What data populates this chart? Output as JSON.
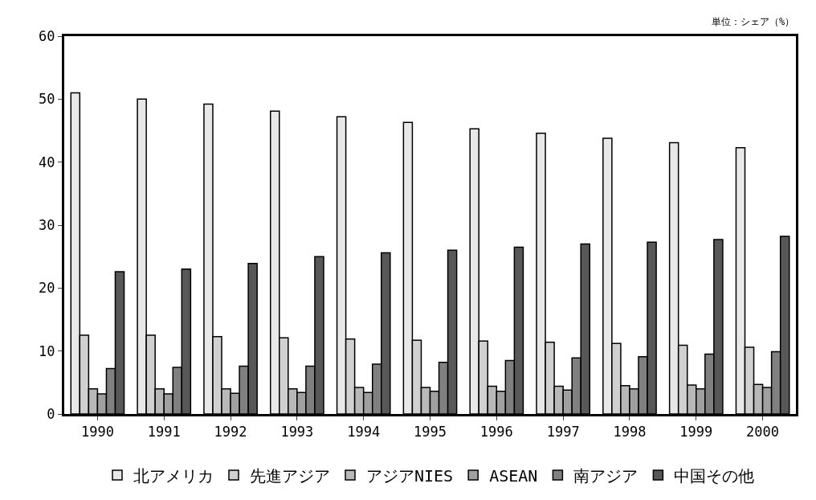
{
  "chart_data": {
    "type": "bar",
    "categories": [
      "1990",
      "1991",
      "1992",
      "1993",
      "1994",
      "1995",
      "1996",
      "1997",
      "1998",
      "1999",
      "2000"
    ],
    "series": [
      {
        "name": "北アメリカ",
        "color": "#e8e8e8",
        "values": [
          51,
          50,
          49.2,
          48.1,
          47.2,
          46.3,
          45.3,
          44.6,
          43.8,
          43.1,
          42.3
        ]
      },
      {
        "name": "先進アジア",
        "color": "#d0d0d0",
        "values": [
          12.5,
          12.5,
          12.3,
          12.1,
          11.9,
          11.7,
          11.6,
          11.4,
          11.2,
          10.9,
          10.6
        ]
      },
      {
        "name": "アジアNIES",
        "color": "#b8b8b8",
        "values": [
          4.0,
          4.0,
          4.0,
          4.0,
          4.2,
          4.2,
          4.4,
          4.4,
          4.5,
          4.6,
          4.7
        ]
      },
      {
        "name": "ASEAN",
        "color": "#a0a0a0",
        "values": [
          3.2,
          3.2,
          3.3,
          3.4,
          3.4,
          3.6,
          3.6,
          3.8,
          4.0,
          4.0,
          4.2
        ]
      },
      {
        "name": "南アジア",
        "color": "#808080",
        "values": [
          7.2,
          7.4,
          7.6,
          7.6,
          7.9,
          8.2,
          8.5,
          8.9,
          9.1,
          9.5,
          9.9
        ]
      },
      {
        "name": "中国その他",
        "color": "#585858",
        "values": [
          22.6,
          23.0,
          23.9,
          25.0,
          25.6,
          26.0,
          26.5,
          27.0,
          27.3,
          27.7,
          28.2
        ]
      }
    ],
    "ylim": [
      0,
      60
    ],
    "yticks": [
      0,
      10,
      20,
      30,
      40,
      50,
      60
    ],
    "annotations": [
      "単位：シェア（%）"
    ],
    "legend": "bottom",
    "grid": false
  }
}
